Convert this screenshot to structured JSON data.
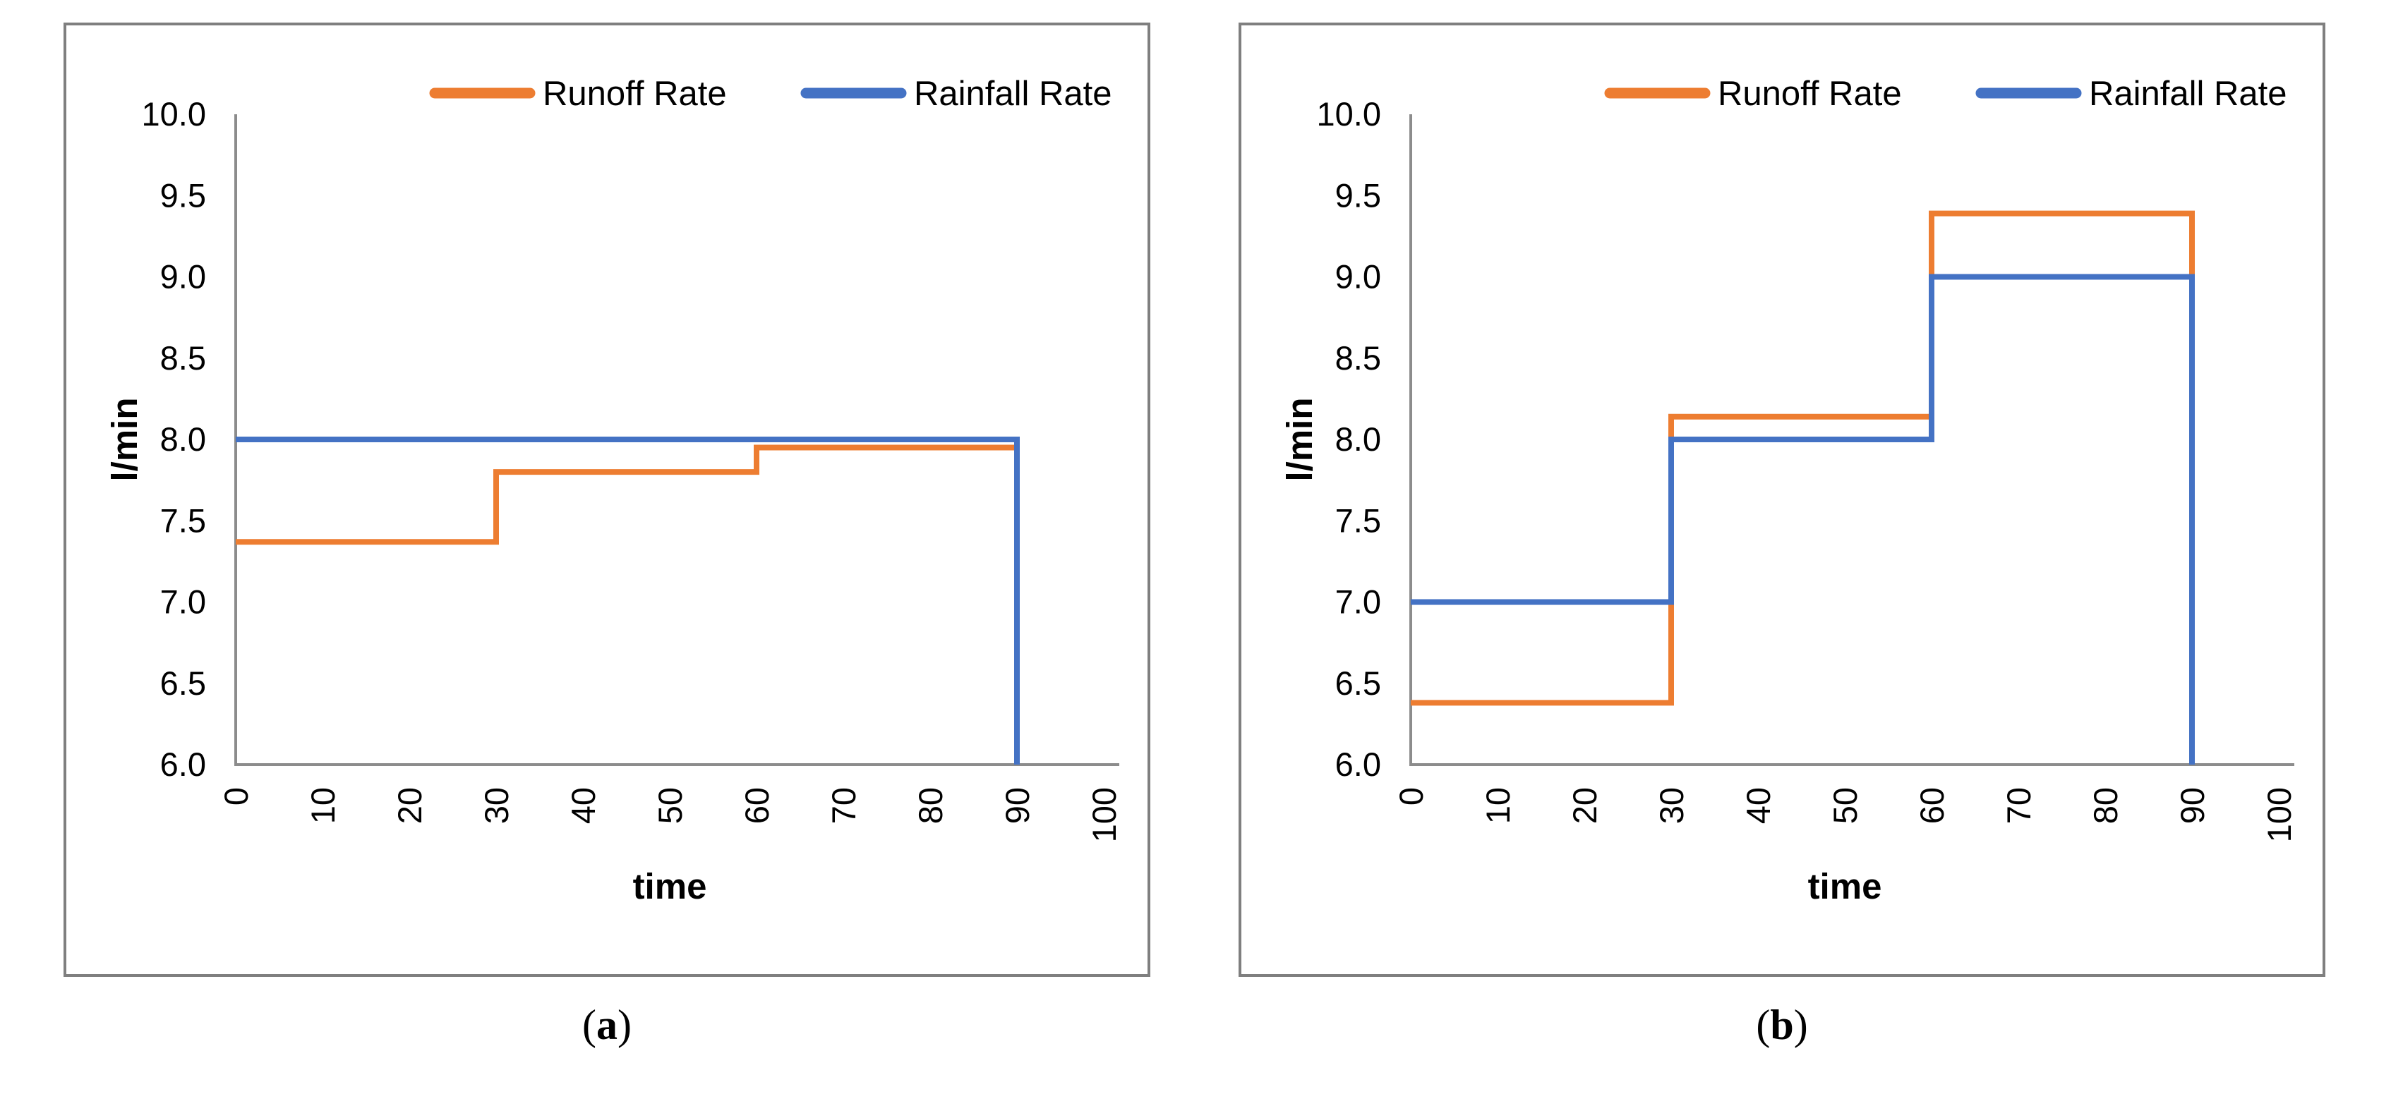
{
  "page": {
    "background": "#ffffff",
    "border_color": "#7f7f7f",
    "axis_color": "#8c8c8c",
    "text_color": "#000000"
  },
  "chart_data": [
    {
      "id": "a",
      "type": "line",
      "subtype": "step",
      "title": "",
      "xlabel": "time",
      "ylabel": "l/min",
      "xlim": [
        0,
        100
      ],
      "ylim": [
        6.0,
        10.0
      ],
      "grid": false,
      "legend_position": "top",
      "x_ticks": [
        0,
        10,
        20,
        30,
        40,
        50,
        60,
        70,
        80,
        90,
        100
      ],
      "x_tick_labels": [
        "0",
        "10",
        "20",
        "30",
        "40",
        "50",
        "60",
        "70",
        "80",
        "90",
        "100"
      ],
      "y_ticks": [
        10.0,
        9.5,
        9.0,
        8.5,
        8.0,
        7.5,
        7.0,
        6.5,
        6.0
      ],
      "y_tick_labels": [
        "10.0",
        "9.5",
        "9.0",
        "8.5",
        "8.0",
        "7.5",
        "7.0",
        "6.5",
        "6.0"
      ],
      "step_breakpoints": [
        0,
        30,
        60,
        90
      ],
      "series": [
        {
          "name": "Runoff Rate",
          "color": "#ED7D31",
          "step_values": [
            7.37,
            7.8,
            7.95
          ],
          "end_drop_to_baseline": true
        },
        {
          "name": "Rainfall Rate",
          "color": "#4472C4",
          "step_values": [
            8.0,
            8.0,
            8.0
          ],
          "end_drop_to_baseline": true
        }
      ],
      "caption_open": "(",
      "caption_letter": "a",
      "caption_close": ")"
    },
    {
      "id": "b",
      "type": "line",
      "subtype": "step",
      "title": "",
      "xlabel": "time",
      "ylabel": "l/min",
      "xlim": [
        0,
        100
      ],
      "ylim": [
        6.0,
        10.0
      ],
      "grid": false,
      "legend_position": "top",
      "x_ticks": [
        0,
        10,
        20,
        30,
        40,
        50,
        60,
        70,
        80,
        90,
        100
      ],
      "x_tick_labels": [
        "0",
        "10",
        "20",
        "30",
        "40",
        "50",
        "60",
        "70",
        "80",
        "90",
        "100"
      ],
      "y_ticks": [
        10.0,
        9.5,
        9.0,
        8.5,
        8.0,
        7.5,
        7.0,
        6.5,
        6.0
      ],
      "y_tick_labels": [
        "10.0",
        "9.5",
        "9.0",
        "8.5",
        "8.0",
        "7.5",
        "7.0",
        "6.5",
        "6.0"
      ],
      "step_breakpoints": [
        0,
        30,
        60,
        90
      ],
      "series": [
        {
          "name": "Runoff Rate",
          "color": "#ED7D31",
          "step_values": [
            6.38,
            8.14,
            9.39
          ],
          "end_drop_to_baseline": true
        },
        {
          "name": "Rainfall Rate",
          "color": "#4472C4",
          "step_values": [
            7.0,
            8.0,
            9.0
          ],
          "end_drop_to_baseline": true
        }
      ],
      "caption_open": "(",
      "caption_letter": "b",
      "caption_close": ")"
    }
  ]
}
